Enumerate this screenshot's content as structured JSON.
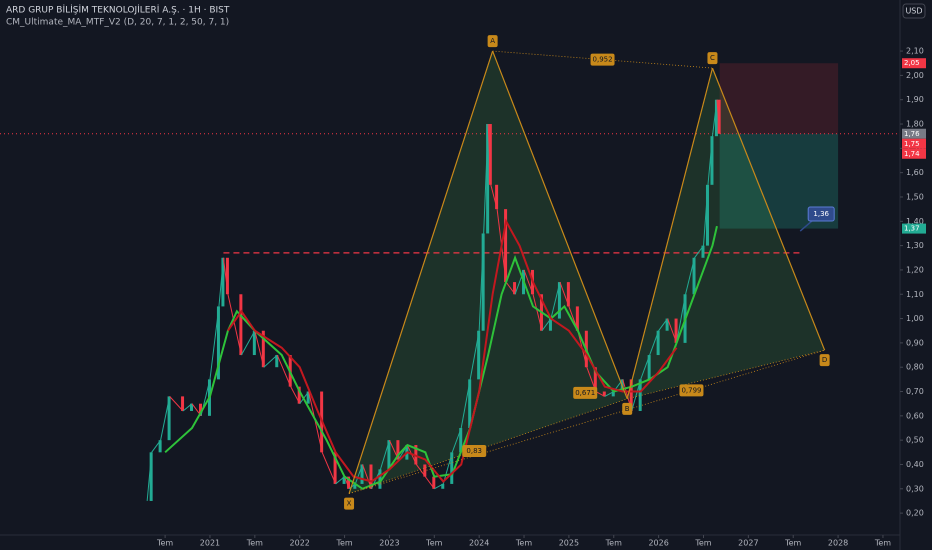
{
  "chart_data": {
    "type": "harmonic-price",
    "title": "ARD GRUP BİLİŞİM TEKNOLOJİLERİ A.Ş. · 1H · BIST",
    "indicator": "CM_Ultimate_MA_MTF_V2 (D, 20, 7, 1, 2, 50, 7, 1)",
    "currency": "USD",
    "xlim": [
      2018.66,
      2028.69
    ],
    "ylim": [
      0.11,
      2.31
    ],
    "xticks": [
      {
        "value": 2020.5,
        "label": "Tem"
      },
      {
        "value": 2021,
        "label": "2021"
      },
      {
        "value": 2021.5,
        "label": "Tem"
      },
      {
        "value": 2022,
        "label": "2022"
      },
      {
        "value": 2022.5,
        "label": "Tem"
      },
      {
        "value": 2023,
        "label": "2023"
      },
      {
        "value": 2023.5,
        "label": "Tem"
      },
      {
        "value": 2024,
        "label": "2024"
      },
      {
        "value": 2024.5,
        "label": "Tem"
      },
      {
        "value": 2025,
        "label": "2025"
      },
      {
        "value": 2025.5,
        "label": "Tem"
      },
      {
        "value": 2026,
        "label": "2026"
      },
      {
        "value": 2026.5,
        "label": "Tem"
      },
      {
        "value": 2027,
        "label": "2027"
      },
      {
        "value": 2027.5,
        "label": "Tem"
      },
      {
        "value": 2028,
        "label": "2028"
      },
      {
        "value": 2028.5,
        "label": "Tem"
      }
    ],
    "yticks": [
      {
        "value": 0.2,
        "label": "0,20"
      },
      {
        "value": 0.3,
        "label": "0,30"
      },
      {
        "value": 0.4,
        "label": "0,40"
      },
      {
        "value": 0.5,
        "label": "0,50"
      },
      {
        "value": 0.6,
        "label": "0,60"
      },
      {
        "value": 0.7,
        "label": "0,70"
      },
      {
        "value": 0.8,
        "label": "0,80"
      },
      {
        "value": 0.9,
        "label": "0,90"
      },
      {
        "value": 1.0,
        "label": "1,00"
      },
      {
        "value": 1.1,
        "label": "1,10"
      },
      {
        "value": 1.2,
        "label": "1,20"
      },
      {
        "value": 1.3,
        "label": "1,30"
      },
      {
        "value": 1.4,
        "label": "1,40"
      },
      {
        "value": 1.5,
        "label": "1,50"
      },
      {
        "value": 1.6,
        "label": "1,60"
      },
      {
        "value": 1.7,
        "label": "1,70"
      },
      {
        "value": 1.8,
        "label": "1,80"
      },
      {
        "value": 1.9,
        "label": "1,90"
      },
      {
        "value": 2.0,
        "label": "2,00"
      },
      {
        "value": 2.1,
        "label": "2,10"
      }
    ],
    "price": {
      "up_color": "#22ab94",
      "down_color": "#f23645",
      "x": [
        2020.3,
        2020.35,
        2020.45,
        2020.55,
        2020.7,
        2020.8,
        2020.9,
        2021.0,
        2021.1,
        2021.15,
        2021.2,
        2021.35,
        2021.5,
        2021.6,
        2021.75,
        2021.9,
        2022.0,
        2022.1,
        2022.25,
        2022.4,
        2022.5,
        2022.55,
        2022.62,
        2022.7,
        2022.8,
        2022.9,
        2023.0,
        2023.1,
        2023.2,
        2023.3,
        2023.4,
        2023.5,
        2023.6,
        2023.7,
        2023.8,
        2023.9,
        2024.0,
        2024.05,
        2024.1,
        2024.13,
        2024.2,
        2024.3,
        2024.4,
        2024.5,
        2024.6,
        2024.7,
        2024.8,
        2024.9,
        2025.0,
        2025.1,
        2025.2,
        2025.3,
        2025.4,
        2025.5,
        2025.6,
        2025.7,
        2025.8,
        2025.9,
        2026.0,
        2026.1,
        2026.2,
        2026.3,
        2026.4,
        2026.5,
        2026.55,
        2026.6,
        2026.65,
        2026.68
      ],
      "values": [
        0.25,
        0.45,
        0.5,
        0.68,
        0.62,
        0.65,
        0.6,
        0.75,
        1.05,
        1.25,
        1.1,
        0.85,
        0.95,
        0.8,
        0.85,
        0.72,
        0.65,
        0.7,
        0.45,
        0.32,
        0.35,
        0.3,
        0.32,
        0.4,
        0.3,
        0.38,
        0.5,
        0.42,
        0.48,
        0.4,
        0.35,
        0.3,
        0.32,
        0.45,
        0.55,
        0.75,
        0.95,
        1.35,
        1.8,
        1.55,
        1.45,
        1.15,
        1.1,
        1.2,
        1.1,
        0.95,
        1.0,
        1.15,
        1.05,
        0.95,
        0.8,
        0.7,
        0.68,
        0.7,
        0.75,
        0.62,
        0.75,
        0.85,
        0.95,
        1.0,
        0.9,
        1.1,
        1.25,
        1.3,
        1.55,
        1.75,
        1.9,
        1.76
      ]
    },
    "series": [
      {
        "color": "#2ec23a",
        "x": [
          2020.5,
          2020.8,
          2021.0,
          2021.2,
          2021.3,
          2021.5,
          2021.8,
          2022.0,
          2022.3,
          2022.5,
          2022.7,
          2022.9,
          2023.1,
          2023.2,
          2023.4,
          2023.5,
          2023.7,
          2023.9,
          2024.1,
          2024.25,
          2024.4,
          2024.6,
          2024.8,
          2024.95,
          2025.1,
          2025.3,
          2025.5,
          2025.7,
          2025.9,
          2026.1,
          2026.25,
          2026.45,
          2026.6,
          2026.65
        ],
        "values": [
          0.45,
          0.55,
          0.68,
          0.95,
          1.03,
          0.95,
          0.85,
          0.7,
          0.5,
          0.35,
          0.3,
          0.33,
          0.44,
          0.48,
          0.45,
          0.35,
          0.36,
          0.55,
          0.85,
          1.1,
          1.25,
          1.05,
          1.0,
          1.05,
          0.95,
          0.78,
          0.7,
          0.72,
          0.75,
          0.8,
          0.95,
          1.15,
          1.3,
          1.38
        ]
      },
      {
        "color": "#c2181f",
        "x": [
          2021.2,
          2021.35,
          2021.5,
          2021.8,
          2022.0,
          2022.2,
          2022.4,
          2022.6,
          2022.8,
          2023.0,
          2023.2,
          2023.4,
          2023.6,
          2023.8,
          2024.0,
          2024.15,
          2024.3,
          2024.45,
          2024.6,
          2024.8,
          2025.0,
          2025.2,
          2025.4,
          2025.6,
          2025.8,
          2026.0,
          2026.2
        ],
        "values": [
          0.95,
          1.03,
          0.95,
          0.88,
          0.8,
          0.62,
          0.45,
          0.35,
          0.33,
          0.38,
          0.45,
          0.42,
          0.33,
          0.4,
          0.7,
          1.1,
          1.4,
          1.3,
          1.15,
          1.0,
          0.95,
          0.85,
          0.72,
          0.7,
          0.7,
          0.78,
          0.88
        ]
      }
    ],
    "pattern": {
      "color": "#c8891a",
      "labels": [
        "X",
        "A",
        "B",
        "C",
        "D"
      ],
      "x": [
        2022.55,
        2024.15,
        2025.65,
        2026.6,
        2027.85
      ],
      "values": [
        0.28,
        2.1,
        0.67,
        2.03,
        0.87
      ],
      "ratios": [
        0.952,
        0.83,
        0.671,
        0.799
      ],
      "ratio_labels": [
        "0,952",
        "0,83",
        "0,671",
        "0,799"
      ]
    },
    "level": {
      "value": 1.27,
      "x": [
        2021.15,
        2027.6
      ],
      "color": "#f23645"
    },
    "position": {
      "x": [
        2026.68,
        2028.0
      ],
      "entry": 1.76,
      "stop": 2.05,
      "target": 1.37
    },
    "price_markers": [
      {
        "value": 2.05,
        "label": "2,05",
        "color": "#f23645"
      },
      {
        "value": 1.76,
        "label": "1,76",
        "color": "#787b86"
      },
      {
        "value": 1.75,
        "label": "1,75",
        "color": "#f23645"
      },
      {
        "value": 1.74,
        "label": "1,74",
        "color": "#f23645"
      },
      {
        "value": 1.37,
        "label": "1,37",
        "color": "#22ab94"
      }
    ],
    "callout": {
      "value": 1.36,
      "label": "1,36",
      "color": "#2f4b8c"
    }
  }
}
